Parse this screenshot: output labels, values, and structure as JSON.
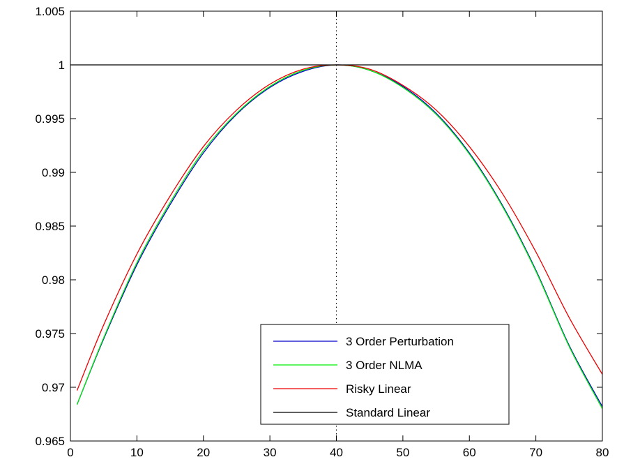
{
  "chart_data": {
    "type": "line",
    "title": "",
    "xlabel": "",
    "ylabel": "",
    "xlim": [
      0,
      80
    ],
    "ylim": [
      0.965,
      1.005
    ],
    "xticks": [
      0,
      10,
      20,
      30,
      40,
      50,
      60,
      70,
      80
    ],
    "xtick_labels": [
      "0",
      "10",
      "20",
      "30",
      "40",
      "50",
      "60",
      "70",
      "80"
    ],
    "yticks": [
      0.965,
      0.97,
      0.975,
      0.98,
      0.985,
      0.99,
      0.995,
      1.0,
      1.005
    ],
    "ytick_labels": [
      "0.965",
      "0.97",
      "0.975",
      "0.98",
      "0.985",
      "0.99",
      "0.995",
      "1",
      "1.005"
    ],
    "grid": false,
    "legend_position": "bottom-right",
    "vertical_reference_line": {
      "x": 40,
      "style": "dotted",
      "color": "#000000"
    },
    "series": [
      {
        "name": "3 Order Perturbation",
        "color": "#0000cc",
        "x": [
          1,
          5,
          10,
          15,
          20,
          25,
          30,
          35,
          40,
          45,
          50,
          55,
          60,
          65,
          70,
          75,
          80
        ],
        "y": [
          0.9684,
          0.9745,
          0.9814,
          0.987,
          0.9918,
          0.9954,
          0.9979,
          0.9994,
          1.0,
          0.9995,
          0.998,
          0.9955,
          0.9918,
          0.9869,
          0.9809,
          0.9739,
          0.9682
        ]
      },
      {
        "name": "3 Order NLMA",
        "color": "#00ee00",
        "x": [
          1,
          5,
          10,
          15,
          20,
          25,
          30,
          35,
          40,
          45,
          50,
          55,
          60,
          65,
          70,
          75,
          80
        ],
        "y": [
          0.9684,
          0.9746,
          0.9816,
          0.9872,
          0.992,
          0.9955,
          0.998,
          0.9995,
          1.0,
          0.9995,
          0.9979,
          0.9954,
          0.9917,
          0.9868,
          0.9808,
          0.9738,
          0.968
        ]
      },
      {
        "name": "Risky Linear",
        "color": "#ee0000",
        "x": [
          1,
          5,
          10,
          15,
          20,
          25,
          30,
          35,
          40,
          45,
          50,
          55,
          60,
          65,
          70,
          75,
          80
        ],
        "y": [
          0.9697,
          0.9758,
          0.9824,
          0.9878,
          0.9924,
          0.9958,
          0.9982,
          0.9996,
          1.0,
          0.9996,
          0.9981,
          0.9958,
          0.9924,
          0.988,
          0.9826,
          0.9765,
          0.9712
        ]
      },
      {
        "name": "Standard Linear",
        "color": "#000000",
        "x": [
          0,
          80
        ],
        "y": [
          1.0,
          1.0
        ]
      }
    ]
  }
}
